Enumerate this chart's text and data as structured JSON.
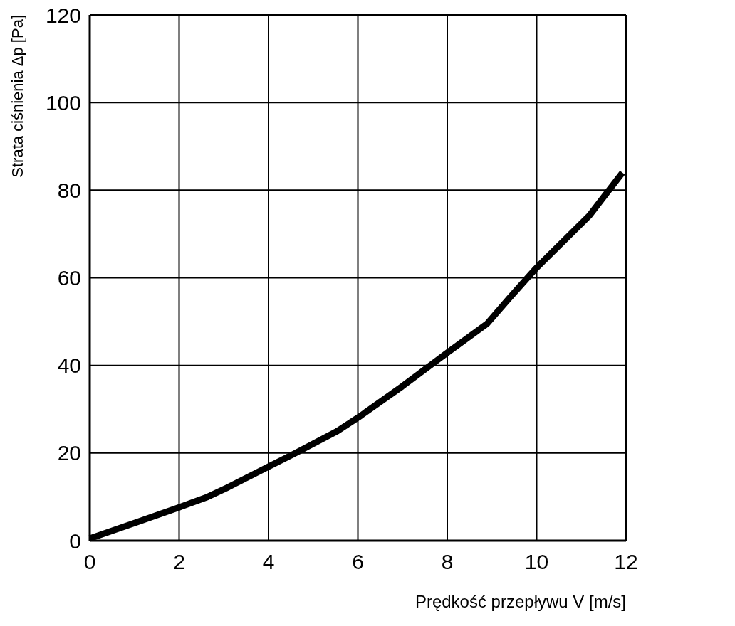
{
  "chart_data": {
    "type": "line",
    "xlabel": "Prędkość przepływu V [m/s]",
    "ylabel": "Strata ciśnienia Δp [Pa]",
    "xlim": [
      0,
      12
    ],
    "ylim": [
      0,
      120
    ],
    "xticks": [
      0,
      2,
      4,
      6,
      8,
      10,
      12
    ],
    "yticks": [
      0,
      20,
      40,
      60,
      80,
      100,
      120
    ],
    "grid": true,
    "marker": "none",
    "line_style": "solid",
    "series": [
      {
        "color": "#000000",
        "x": [
          0,
          1,
          2,
          2.64,
          3.1,
          4,
          4.57,
          5.54,
          6.02,
          6.99,
          8,
          8.89,
          9.4,
          9.97,
          11.18,
          11.92
        ],
        "values": [
          0.5,
          4,
          7.6,
          10,
          12.2,
          16.9,
          19.8,
          25,
          28.2,
          35.2,
          42.9,
          49.5,
          55.5,
          62,
          74.2,
          84
        ]
      }
    ]
  }
}
